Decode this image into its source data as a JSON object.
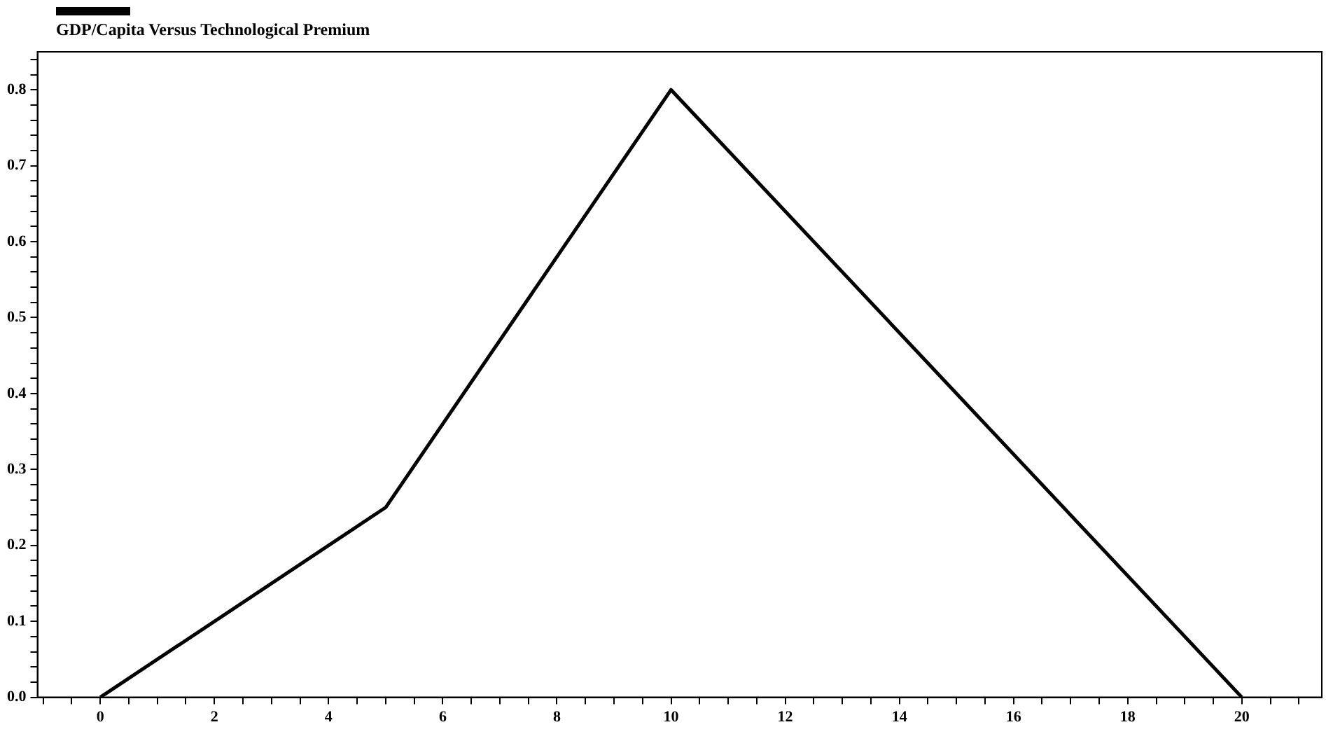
{
  "chart_data": {
    "type": "line",
    "title": "GDP/Capita Versus Technological Premium",
    "x": [
      0,
      5,
      10,
      20
    ],
    "series": [
      {
        "color": "#000000",
        "values": [
          0,
          0.25,
          0.8,
          0
        ]
      }
    ],
    "xlim": [
      -1.1,
      21.4
    ],
    "xticks": [
      {
        "value": -1,
        "label": null
      },
      {
        "value": -0.5,
        "label": null
      },
      0,
      {
        "value": 0.5,
        "label": null
      },
      {
        "value": 1,
        "label": null
      },
      {
        "value": 1.5,
        "label": null
      },
      2,
      {
        "value": 2.5,
        "label": null
      },
      {
        "value": 3,
        "label": null
      },
      {
        "value": 3.5,
        "label": null
      },
      4,
      {
        "value": 4.5,
        "label": null
      },
      {
        "value": 5,
        "label": null
      },
      {
        "value": 5.5,
        "label": null
      },
      6,
      {
        "value": 6.5,
        "label": null
      },
      {
        "value": 7,
        "label": null
      },
      {
        "value": 7.5,
        "label": null
      },
      8,
      {
        "value": 8.5,
        "label": null
      },
      {
        "value": 9,
        "label": null
      },
      {
        "value": 9.5,
        "label": null
      },
      10,
      {
        "value": 10.5,
        "label": null
      },
      {
        "value": 11,
        "label": null
      },
      {
        "value": 11.5,
        "label": null
      },
      12,
      {
        "value": 12.5,
        "label": null
      },
      {
        "value": 13,
        "label": null
      },
      {
        "value": 13.5,
        "label": null
      },
      14,
      {
        "value": 14.5,
        "label": null
      },
      {
        "value": 15,
        "label": null
      },
      {
        "value": 15.5,
        "label": null
      },
      16,
      {
        "value": 16.5,
        "label": null
      },
      {
        "value": 17,
        "label": null
      },
      {
        "value": 17.5,
        "label": null
      },
      18,
      {
        "value": 18.5,
        "label": null
      },
      {
        "value": 19,
        "label": null
      },
      {
        "value": 19.5,
        "label": null
      },
      20,
      {
        "value": 20.5,
        "label": null
      },
      {
        "value": 21,
        "label": null
      }
    ],
    "ylim": [
      0,
      0.85
    ],
    "yticks": [
      {
        "value": 0,
        "label": "0.0"
      },
      {
        "value": 0.02,
        "label": null
      },
      {
        "value": 0.04,
        "label": null
      },
      {
        "value": 0.06,
        "label": null
      },
      {
        "value": 0.08,
        "label": null
      },
      0.1,
      {
        "value": 0.12,
        "label": null
      },
      {
        "value": 0.14,
        "label": null
      },
      {
        "value": 0.16,
        "label": null
      },
      {
        "value": 0.18,
        "label": null
      },
      0.2,
      {
        "value": 0.22,
        "label": null
      },
      {
        "value": 0.24,
        "label": null
      },
      {
        "value": 0.26,
        "label": null
      },
      {
        "value": 0.28,
        "label": null
      },
      0.3,
      {
        "value": 0.32,
        "label": null
      },
      {
        "value": 0.34,
        "label": null
      },
      {
        "value": 0.36,
        "label": null
      },
      {
        "value": 0.38,
        "label": null
      },
      0.4,
      {
        "value": 0.42,
        "label": null
      },
      {
        "value": 0.44,
        "label": null
      },
      {
        "value": 0.46,
        "label": null
      },
      {
        "value": 0.48,
        "label": null
      },
      0.5,
      {
        "value": 0.52,
        "label": null
      },
      {
        "value": 0.54,
        "label": null
      },
      {
        "value": 0.56,
        "label": null
      },
      {
        "value": 0.58,
        "label": null
      },
      0.6,
      {
        "value": 0.62,
        "label": null
      },
      {
        "value": 0.64,
        "label": null
      },
      {
        "value": 0.66,
        "label": null
      },
      {
        "value": 0.68,
        "label": null
      },
      0.7,
      {
        "value": 0.72,
        "label": null
      },
      {
        "value": 0.74,
        "label": null
      },
      {
        "value": 0.76,
        "label": null
      },
      {
        "value": 0.78,
        "label": null
      },
      0.8,
      {
        "value": 0.82,
        "label": null
      },
      {
        "value": 0.84,
        "label": null
      }
    ],
    "grid": false,
    "marker": "none",
    "line_style": "solid"
  }
}
